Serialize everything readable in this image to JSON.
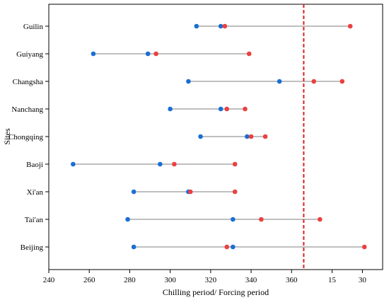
{
  "chart_data": {
    "type": "dumbbell",
    "xlabel": "Chilling period/ Forcing period",
    "ylabel": "Sites",
    "x_ticks": [
      "240",
      "260",
      "280",
      "300",
      "320",
      "340",
      "360",
      "15",
      "30"
    ],
    "x_tick_values": [
      240,
      260,
      280,
      300,
      320,
      340,
      360,
      380,
      395
    ],
    "xlim": [
      240,
      405
    ],
    "reference_line": {
      "x": 366,
      "style": "dashed",
      "color": "#e02020"
    },
    "categories": [
      "Guilin",
      "Guiyang",
      "Changsha",
      "Nanchang",
      "Chongqing",
      "Baoji",
      "Xi'an",
      "Tai'an",
      "Beijing"
    ],
    "series": [
      {
        "color": "#1a6fd4",
        "values": [
          [
            313,
            325
          ],
          [
            262,
            289
          ],
          [
            309,
            354
          ],
          [
            300,
            325
          ],
          [
            315,
            338
          ],
          [
            252,
            295
          ],
          [
            282,
            309
          ],
          [
            279,
            331
          ],
          [
            282,
            331
          ]
        ]
      },
      {
        "color": "#ec4040",
        "values": [
          [
            327,
            389
          ],
          [
            293,
            339
          ],
          [
            371,
            385
          ],
          [
            328,
            337
          ],
          [
            340,
            347
          ],
          [
            302,
            332
          ],
          [
            310,
            332
          ],
          [
            345,
            374
          ],
          [
            328,
            396
          ]
        ]
      }
    ],
    "line_color": "#999999",
    "grid": false
  }
}
